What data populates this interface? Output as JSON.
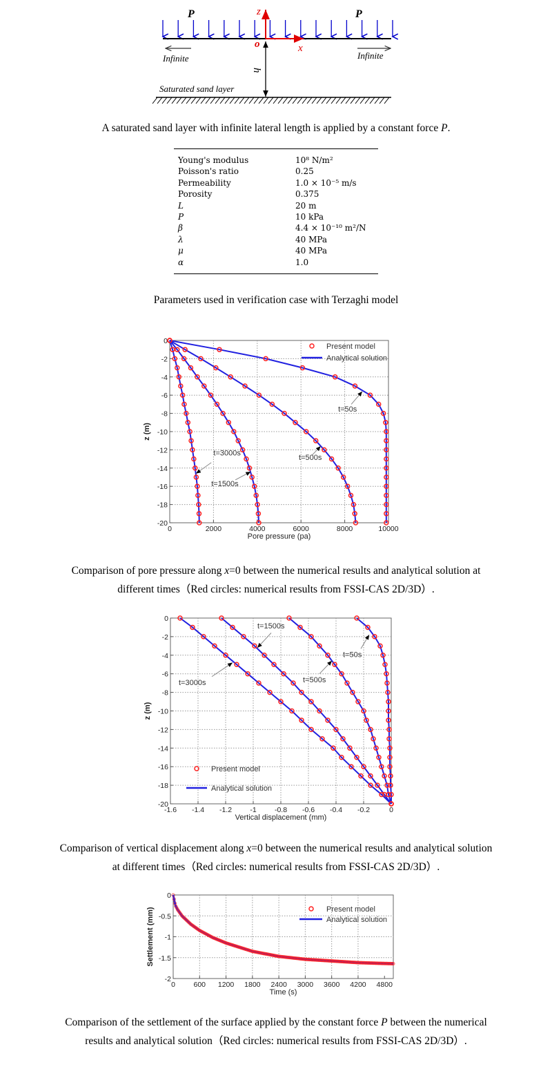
{
  "diagram": {
    "load_label_left": "P",
    "load_label_right": "P",
    "axis_z": "z",
    "axis_x": "x",
    "origin": "o",
    "infinite_left": "Infinite",
    "infinite_right": "Infinite",
    "depth_label": "h",
    "layer_label": "Saturated sand layer",
    "colors": {
      "load_arrows": "#0000cc",
      "axes": "#e00000"
    }
  },
  "caption1": {
    "before": "A saturated sand layer with infinite lateral length is applied by a constant force ",
    "italic": "P",
    "after": "."
  },
  "params_table": {
    "rows": [
      {
        "name": "Young's modulus",
        "value": "10⁸ N/m²",
        "italic": false
      },
      {
        "name": "Poisson's ratio",
        "value": "0.25",
        "italic": false
      },
      {
        "name": "Permeability",
        "value": "1.0 × 10⁻⁵ m/s",
        "italic": false
      },
      {
        "name": "Porosity",
        "value": "0.375",
        "italic": false
      },
      {
        "name": "L",
        "value": "20 m",
        "italic": true
      },
      {
        "name": "P",
        "value": "10 kPa",
        "italic": true
      },
      {
        "name": "β",
        "value": "4.4 × 10⁻¹⁰ m²/N",
        "italic": true
      },
      {
        "name": "λ",
        "value": "40 MPa",
        "italic": true
      },
      {
        "name": "μ",
        "value": "40 MPa",
        "italic": true
      },
      {
        "name": "α",
        "value": "1.0",
        "italic": true
      }
    ]
  },
  "caption2": "Parameters used in verification case with Terzaghi model",
  "caption3": {
    "l1a": "Comparison of pore pressure along ",
    "l1i": "x",
    "l1b": "=0 between the numerical results and analytical solution at",
    "l2": "different times（Red circles: numerical results from FSSI-CAS 2D/3D）."
  },
  "caption4": {
    "l1a": "Comparison of vertical displacement along ",
    "l1i": "x",
    "l1b": "=0 between the numerical results and analytical solution",
    "l2": "at different times（Red circles: numerical results from FSSI-CAS 2D/3D）."
  },
  "caption5": {
    "l1a": "Comparison of the settlement of the surface applied by the constant force ",
    "l1i": "P",
    "l1b": " between the numerical",
    "l2": "results and analytical solution（Red circles: numerical results from FSSI-CAS 2D/3D）."
  },
  "chart_data": [
    {
      "type": "line",
      "xlabel": "Pore pressure (pa)",
      "ylabel": "z  (m)",
      "xlim": [
        0,
        10000
      ],
      "ylim": [
        -20,
        0
      ],
      "xticks": [
        0,
        2000,
        4000,
        6000,
        8000,
        10000
      ],
      "yticks": [
        0,
        -2,
        -4,
        -6,
        -8,
        -10,
        -12,
        -14,
        -16,
        -18,
        -20
      ],
      "grid": true,
      "legend": {
        "placement": "top-right",
        "marker_label": "Present model",
        "line_label": "Analytical solution"
      },
      "colors": {
        "marker": "#ff2020",
        "line": "#2020e0"
      },
      "z": [
        0,
        -1,
        -2,
        -3,
        -4,
        -5,
        -6,
        -7,
        -8,
        -9,
        -10,
        -11,
        -12,
        -13,
        -14,
        -15,
        -16,
        -17,
        -18,
        -19,
        -20
      ],
      "series": [
        {
          "name": "t=50s",
          "values": [
            0,
            2270,
            4390,
            6070,
            7560,
            8470,
            9160,
            9550,
            9770,
            9870,
            9900,
            9900,
            9900,
            9900,
            9900,
            9900,
            9900,
            9900,
            9900,
            9900,
            9900
          ]
        },
        {
          "name": "t=500s",
          "values": [
            0,
            700,
            1420,
            2110,
            2780,
            3440,
            4080,
            4680,
            5240,
            5740,
            6240,
            6680,
            7060,
            7400,
            7700,
            7940,
            8130,
            8280,
            8400,
            8460,
            8500
          ]
        },
        {
          "name": "t=1500s",
          "values": [
            0,
            340,
            650,
            960,
            1260,
            1570,
            1870,
            2160,
            2430,
            2690,
            2930,
            3130,
            3330,
            3500,
            3640,
            3760,
            3870,
            3950,
            4010,
            4050,
            4070
          ]
        },
        {
          "name": "t=3000s",
          "values": [
            0,
            130,
            230,
            340,
            420,
            500,
            590,
            660,
            750,
            830,
            920,
            980,
            1040,
            1100,
            1160,
            1210,
            1260,
            1290,
            1320,
            1340,
            1350
          ]
        }
      ],
      "annotations": [
        {
          "text": "t=50s",
          "at": [
            7700,
            -7.8
          ],
          "from": [
            8300,
            -7
          ],
          "to": [
            8800,
            -5.6
          ]
        },
        {
          "text": "t=500s",
          "at": [
            5900,
            -13.1
          ],
          "from": [
            6500,
            -12.6
          ],
          "to": [
            6900,
            -11.6
          ]
        },
        {
          "text": "t=1500s",
          "at": [
            1900,
            -16.0
          ],
          "from": [
            3000,
            -15.3
          ],
          "to": [
            3700,
            -14.4
          ]
        },
        {
          "text": "t=3000s",
          "at": [
            2000,
            -12.6
          ],
          "from": [
            1900,
            -13.4
          ],
          "to": [
            1200,
            -14.6
          ]
        }
      ]
    },
    {
      "type": "line",
      "xlabel": "Vertical displacement (mm)",
      "ylabel": "z  (m)",
      "xlim": [
        -1.6,
        0
      ],
      "ylim": [
        -20,
        0
      ],
      "xticks": [
        -1.6,
        -1.4,
        -1.2,
        -1,
        -0.8,
        -0.6,
        -0.4,
        -0.2,
        0
      ],
      "yticks": [
        0,
        -2,
        -4,
        -6,
        -8,
        -10,
        -12,
        -14,
        -16,
        -18,
        -20
      ],
      "grid": true,
      "legend": {
        "placement": "bottom-left",
        "marker_label": "Present model",
        "line_label": "Analytical solution"
      },
      "colors": {
        "marker": "#ff2020",
        "line": "#2020e0"
      },
      "z": [
        0,
        -1,
        -2,
        -3,
        -4,
        -5,
        -6,
        -7,
        -8,
        -9,
        -10,
        -11,
        -12,
        -13,
        -14,
        -15,
        -16,
        -17,
        -18,
        -19,
        -20
      ],
      "series": [
        {
          "name": "t=50s",
          "values": [
            -0.25,
            -0.17,
            -0.12,
            -0.08,
            -0.06,
            -0.045,
            -0.035,
            -0.03,
            -0.025,
            -0.02,
            -0.02,
            -0.02,
            -0.015,
            -0.015,
            -0.01,
            -0.01,
            -0.01,
            -0.005,
            -0.005,
            0,
            0
          ]
        },
        {
          "name": "t=500s",
          "values": [
            -0.74,
            -0.66,
            -0.58,
            -0.52,
            -0.46,
            -0.41,
            -0.36,
            -0.32,
            -0.28,
            -0.24,
            -0.2,
            -0.18,
            -0.15,
            -0.13,
            -0.11,
            -0.09,
            -0.07,
            -0.05,
            -0.03,
            -0.02,
            0
          ]
        },
        {
          "name": "t=1500s",
          "values": [
            -1.23,
            -1.15,
            -1.07,
            -0.99,
            -0.92,
            -0.85,
            -0.78,
            -0.71,
            -0.65,
            -0.58,
            -0.52,
            -0.46,
            -0.4,
            -0.35,
            -0.3,
            -0.25,
            -0.2,
            -0.15,
            -0.1,
            -0.05,
            0
          ]
        },
        {
          "name": "t=3000s",
          "values": [
            -1.53,
            -1.44,
            -1.36,
            -1.28,
            -1.2,
            -1.12,
            -1.04,
            -0.96,
            -0.88,
            -0.8,
            -0.72,
            -0.65,
            -0.58,
            -0.5,
            -0.42,
            -0.36,
            -0.29,
            -0.22,
            -0.15,
            -0.07,
            0
          ]
        }
      ],
      "annotations": [
        {
          "text": "t=1500s",
          "at": [
            -0.97,
            -1.1
          ],
          "from": [
            -0.87,
            -1.6
          ],
          "to": [
            -0.97,
            -3.2
          ]
        },
        {
          "text": "t=50s",
          "at": [
            -0.35,
            -4.2
          ],
          "from": [
            -0.22,
            -3.3
          ],
          "to": [
            -0.16,
            -1.8
          ]
        },
        {
          "text": "t=500s",
          "at": [
            -0.64,
            -6.9
          ],
          "from": [
            -0.52,
            -6.0
          ],
          "to": [
            -0.43,
            -4.6
          ]
        },
        {
          "text": "t=3000s",
          "at": [
            -1.54,
            -7.2
          ],
          "from": [
            -1.3,
            -6.3
          ],
          "to": [
            -1.15,
            -4.8
          ]
        }
      ]
    },
    {
      "type": "line",
      "xlabel": "Time  (s)",
      "ylabel": "Settlement  (mm)",
      "xlim": [
        0,
        5000
      ],
      "ylim": [
        -2,
        0
      ],
      "xticks": [
        0,
        600,
        1200,
        1800,
        2400,
        3000,
        3600,
        4200,
        4800
      ],
      "yticks": [
        0,
        -0.5,
        -1,
        -1.5,
        -2
      ],
      "grid": true,
      "legend": {
        "placement": "top-right",
        "marker_label": "Present model",
        "line_label": "Analytical solution"
      },
      "colors": {
        "marker": "#ff2020",
        "line": "#2020e0"
      },
      "x": [
        0,
        50,
        100,
        200,
        400,
        600,
        900,
        1200,
        1800,
        2400,
        3000,
        3600,
        4200,
        4800,
        5000
      ],
      "series": [
        {
          "values": [
            0,
            -0.25,
            -0.35,
            -0.5,
            -0.7,
            -0.85,
            -1.02,
            -1.15,
            -1.35,
            -1.47,
            -1.54,
            -1.58,
            -1.62,
            -1.64,
            -1.645
          ]
        }
      ],
      "annotations": []
    }
  ]
}
